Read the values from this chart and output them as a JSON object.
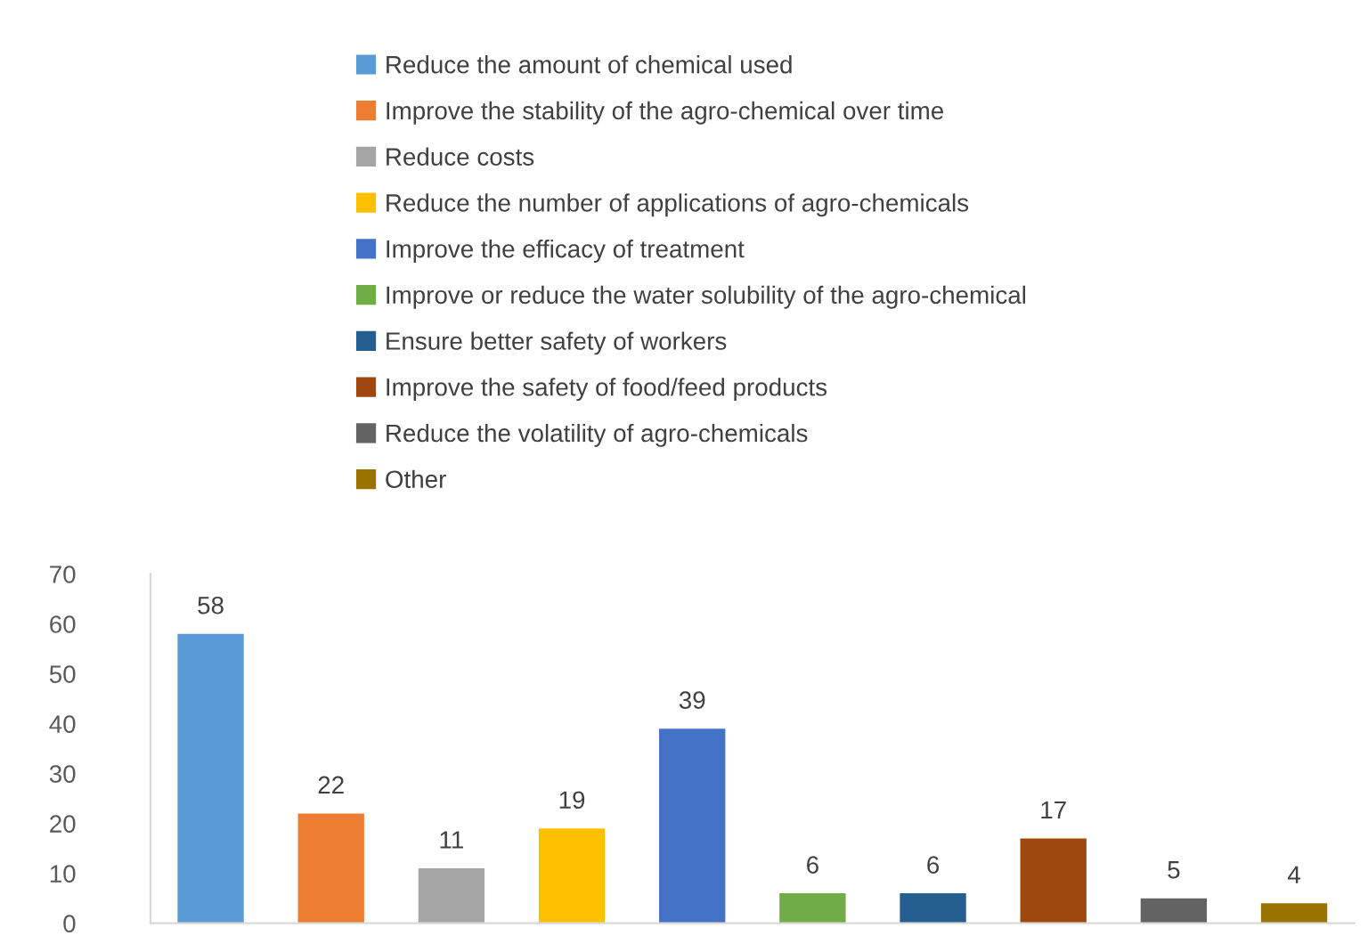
{
  "chart_data": {
    "type": "bar",
    "categories": [
      null,
      null,
      null,
      null,
      null,
      null,
      null,
      null,
      null,
      null
    ],
    "series": [
      {
        "name": "Reduce the amount of chemical used",
        "color": "#5b9bd5",
        "values": [
          58,
          null,
          null,
          null,
          null,
          null,
          null,
          null,
          null,
          null
        ]
      },
      {
        "name": "Improve the stability of the agro-chemical over time",
        "color": "#ed7d31",
        "values": [
          null,
          22,
          null,
          null,
          null,
          null,
          null,
          null,
          null,
          null
        ]
      },
      {
        "name": "Reduce costs",
        "color": "#a5a5a5",
        "values": [
          null,
          null,
          11,
          null,
          null,
          null,
          null,
          null,
          null,
          null
        ]
      },
      {
        "name": "Reduce the number of applications of agro-chemicals",
        "color": "#ffc000",
        "values": [
          null,
          null,
          null,
          19,
          null,
          null,
          null,
          null,
          null,
          null
        ]
      },
      {
        "name": "Improve the efficacy of treatment",
        "color": "#4472c4",
        "values": [
          null,
          null,
          null,
          null,
          39,
          null,
          null,
          null,
          null,
          null
        ]
      },
      {
        "name": "Improve or reduce the water solubility of the agro-chemical",
        "color": "#70ad47",
        "values": [
          null,
          null,
          null,
          null,
          null,
          6,
          null,
          null,
          null,
          null
        ]
      },
      {
        "name": "Ensure better safety of workers",
        "color": "#255e91",
        "values": [
          null,
          null,
          null,
          null,
          null,
          null,
          6,
          null,
          null,
          null
        ]
      },
      {
        "name": "Improve the safety of food/feed products",
        "color": "#9e480e",
        "values": [
          null,
          null,
          null,
          null,
          null,
          null,
          null,
          17,
          null,
          null
        ]
      },
      {
        "name": "Reduce the volatility of agro-chemicals",
        "color": "#636363",
        "values": [
          null,
          null,
          null,
          null,
          null,
          null,
          null,
          null,
          5,
          null
        ]
      },
      {
        "name": "Other",
        "color": "#997300",
        "values": [
          null,
          null,
          null,
          null,
          null,
          null,
          null,
          null,
          null,
          4
        ]
      }
    ],
    "ylim": [
      0,
      70
    ],
    "yticks": [
      0,
      10,
      20,
      30,
      40,
      50,
      60,
      70
    ],
    "data_labels": true,
    "legend": "top",
    "grid": false
  }
}
